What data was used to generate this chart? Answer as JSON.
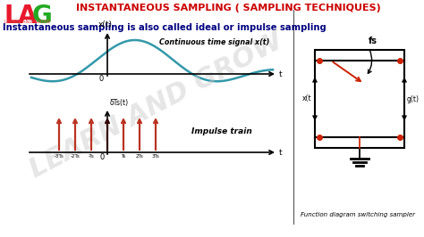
{
  "title": "INSTANTANEOUS SAMPLING ( SAMPLING TECHNIQUES)",
  "subtitle": "Instantaneous sampling is also called ideal or impulse sampling",
  "bg_color": "#ffffff",
  "title_color": "#cc0000",
  "subtitle_color": "#000080",
  "lag_L": "#e8192c",
  "lag_A": "#e8192c",
  "lag_G": "#22aa22",
  "learn_and_grow_color": "#dd4444",
  "signal_color": "#3399aa",
  "impulse_color": "#bb3322",
  "impulse_center_color": "#330000",
  "watermark": "LEARN AND GROW",
  "continuous_label": "Continuous time signal x(t)",
  "impulse_label": "Impulse train",
  "xt_label": "x(t)",
  "t_label": "t",
  "origin_label": "0",
  "delta_label": "δTs(t)",
  "switch_label": "Function diagram switching sampler",
  "fs_label": "fs",
  "xt_switch": "x(t",
  "gt_switch": "g(t)",
  "ts_labels": [
    "-3Ts",
    "-2Ts",
    "-Ts",
    "Ts",
    "2Ts",
    "3Ts"
  ],
  "divider_color": "#555555",
  "switch_color": "#cc2200",
  "box_color": "#000000"
}
